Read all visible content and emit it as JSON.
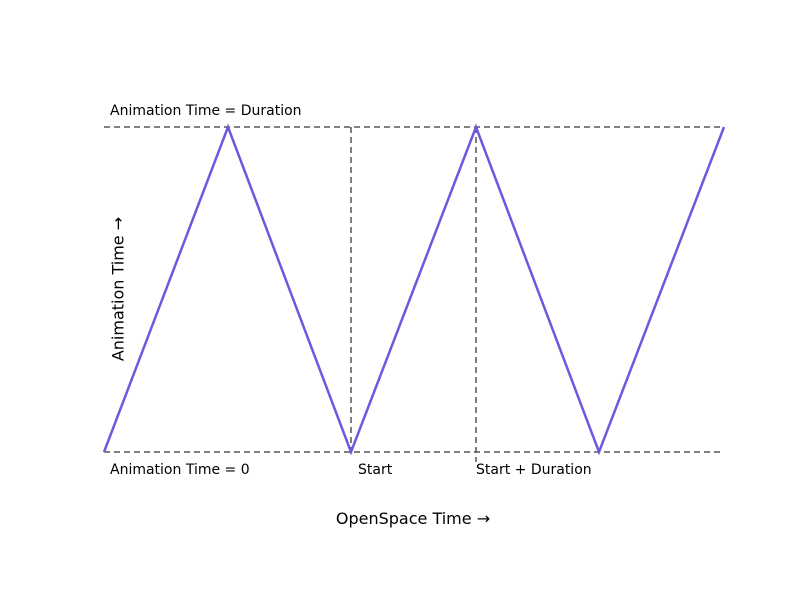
{
  "labels": {
    "top_reference": "Animation Time = Duration",
    "bottom_reference": "Animation Time = 0",
    "start_marker": "Start",
    "start_plus_duration_marker": "Start + Duration"
  },
  "axes": {
    "x_label": "OpenSpace Time →",
    "y_label": "Animation Time →"
  },
  "colors": {
    "wave": "#6a5ae0",
    "guide_lines": "#000000",
    "marker_lines": "#555555",
    "background": "#ffffff"
  },
  "diagram": {
    "wave_shape": "triangle",
    "reference_levels": [
      "Animation Time = Duration",
      "Animation Time = 0"
    ],
    "vertical_markers": [
      "Start",
      "Start + Duration"
    ]
  }
}
